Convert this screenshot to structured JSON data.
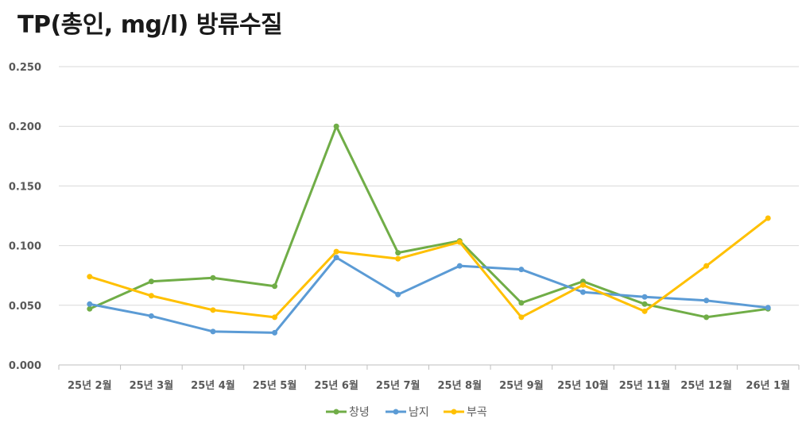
{
  "chart_data": {
    "type": "line",
    "title": "TP(총인, mg/l) 방류수질",
    "categories": [
      "25년 2월",
      "25년 3월",
      "25년 4월",
      "25년 5월",
      "25년 6월",
      "25년 7월",
      "25년 8월",
      "25년 9월",
      "25년 10월",
      "25년 11월",
      "25년 12월",
      "26년 1월"
    ],
    "ylim": [
      0,
      0.25
    ],
    "yticks": [
      "0.000",
      "0.050",
      "0.100",
      "0.150",
      "0.200",
      "0.250"
    ],
    "grid": true,
    "legend_position": "bottom",
    "series": [
      {
        "name": "창녕",
        "color": "#70AD47",
        "values": [
          0.047,
          0.07,
          0.073,
          0.066,
          0.2,
          0.094,
          0.104,
          0.052,
          0.07,
          0.051,
          0.04,
          0.047
        ]
      },
      {
        "name": "남지",
        "color": "#5B9BD5",
        "values": [
          0.051,
          0.041,
          0.028,
          0.027,
          0.09,
          0.059,
          0.083,
          0.08,
          0.061,
          0.057,
          0.054,
          0.048
        ]
      },
      {
        "name": "부곡",
        "color": "#FFC000",
        "values": [
          0.074,
          0.058,
          0.046,
          0.04,
          0.095,
          0.089,
          0.103,
          0.04,
          0.067,
          0.045,
          0.083,
          0.123
        ]
      }
    ]
  }
}
